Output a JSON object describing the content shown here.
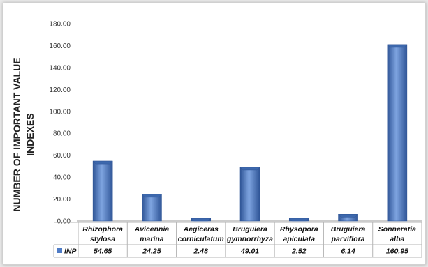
{
  "chart_data": {
    "type": "bar",
    "title": "",
    "xlabel": "",
    "ylabel_lines": [
      "NUMBER OF IMPORTANT VALUE",
      "INDEXES"
    ],
    "categories": [
      [
        "Rhizophora",
        "stylosa"
      ],
      [
        "Avicennia",
        "marina"
      ],
      [
        "Aegiceras",
        "corniculatum"
      ],
      [
        "Bruguiera",
        "gymnorrhyza"
      ],
      [
        "Rhysopora",
        "apiculata"
      ],
      [
        "Bruguiera",
        "parviflora"
      ],
      [
        "Sonneratia",
        "alba"
      ]
    ],
    "series": [
      {
        "name": "INP",
        "values": [
          54.65,
          24.25,
          2.48,
          49.01,
          2.52,
          6.14,
          160.95
        ],
        "value_labels": [
          "54.65",
          "24.25",
          "2.48",
          "49.01",
          "2.52",
          "6.14",
          "160.95"
        ]
      }
    ],
    "ylim": [
      0,
      180
    ],
    "yticks": [
      "0.00",
      "20.00",
      "40.00",
      "60.00",
      "80.00",
      "100.00",
      "120.00",
      "140.00",
      "160.00",
      "180.00"
    ],
    "grid": false,
    "legend": "data-table",
    "colors": {
      "bar": "#4f7cc6",
      "bar_light": "#7ea4e0",
      "bar_dark": "#2f5597",
      "bar_top": "#3d68ad",
      "table_lines": "#b5b5b5",
      "axis": "#9a9a9a"
    }
  }
}
